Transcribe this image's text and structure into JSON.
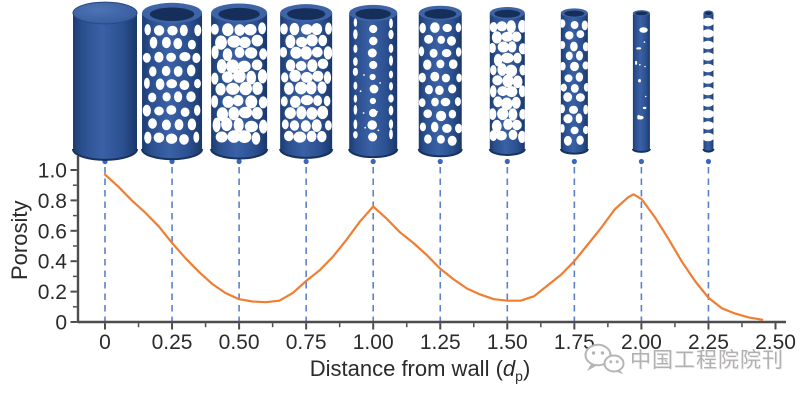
{
  "colors": {
    "curve": "#F07E32",
    "dashed_guide": "#5B82C9",
    "guide_dot": "#3B66BE",
    "axis": "#4D4D4D",
    "text": "#2B2B2B",
    "cylinder_dark": "#16335F",
    "cylinder_mid": "#2D5293",
    "cylinder_light": "#3E64A7",
    "watermark": "#B3B0B0",
    "background": "#FFFFFF"
  },
  "y_axis": {
    "label": "Porosity",
    "tick_labels": [
      "0",
      "0.2",
      "0.4",
      "0.6",
      "0.8",
      "1.0"
    ]
  },
  "x_axis": {
    "label_prefix": "Distance from wall (",
    "label_symbol": "d",
    "label_subscript": "p",
    "label_suffix": ")",
    "tick_labels": [
      "0",
      "0.25",
      "0.50",
      "0.75",
      "1.00",
      "1.25",
      "1.50",
      "1.75",
      "2.00",
      "2.25",
      "2.50"
    ]
  },
  "watermark": {
    "icon": "wechat-icon",
    "text": "中国工程院院刊"
  },
  "cylinders": [
    {
      "x": 0,
      "width": 64,
      "pattern": "solid"
    },
    {
      "x": 0.25,
      "width": 60,
      "pattern": "holes",
      "hole_r": 5.0,
      "row_gap": 13.5,
      "cols": 5
    },
    {
      "x": 0.5,
      "width": 56,
      "pattern": "net",
      "hole_r": 6.0,
      "row_gap": 12,
      "cols": 5
    },
    {
      "x": 0.75,
      "width": 52,
      "pattern": "net",
      "hole_r": 5.6,
      "row_gap": 12,
      "cols": 5
    },
    {
      "x": 1,
      "width": 48,
      "pattern": "spots"
    },
    {
      "x": 1.25,
      "width": 43,
      "pattern": "holes",
      "hole_r": 4.5,
      "row_gap": 12.5,
      "cols": 4
    },
    {
      "x": 1.5,
      "width": 35,
      "pattern": "net",
      "hole_r": 5.4,
      "row_gap": 11,
      "cols": 4
    },
    {
      "x": 1.75,
      "width": 27,
      "pattern": "net",
      "hole_r": 4.2,
      "row_gap": 10.5,
      "cols": 3
    },
    {
      "x": 2,
      "width": 17,
      "pattern": "few"
    },
    {
      "x": 2.25,
      "width": 10,
      "pattern": "crescents"
    }
  ],
  "chart_data": {
    "type": "line",
    "title": "",
    "xlabel": "Distance from wall (dp)",
    "ylabel": "Porosity",
    "xlim": [
      0,
      2.5
    ],
    "ylim": [
      0,
      1.0
    ],
    "x_ticks": [
      0,
      0.25,
      0.5,
      0.75,
      1,
      1.25,
      1.5,
      1.75,
      2,
      2.25,
      2.5
    ],
    "y_ticks": [
      0,
      0.2,
      0.4,
      0.6,
      0.8,
      1
    ],
    "x_minor_step": 0.125,
    "y_minor_step": 0.1,
    "grid": false,
    "legend": false,
    "guide_lines_x": [
      0,
      0.25,
      0.5,
      0.75,
      1,
      1.25,
      1.5,
      1.75,
      2,
      2.25
    ],
    "series": [
      {
        "name": "porosity",
        "color": "#F07E32",
        "x": [
          0,
          0.05,
          0.1,
          0.15,
          0.2,
          0.25,
          0.3,
          0.35,
          0.4,
          0.45,
          0.5,
          0.55,
          0.6,
          0.65,
          0.7,
          0.75,
          0.8,
          0.85,
          0.9,
          0.95,
          1,
          1.05,
          1.1,
          1.15,
          1.2,
          1.25,
          1.3,
          1.35,
          1.4,
          1.45,
          1.5,
          1.55,
          1.6,
          1.65,
          1.7,
          1.75,
          1.8,
          1.85,
          1.9,
          1.95,
          1.97,
          2,
          2.05,
          2.1,
          2.15,
          2.2,
          2.25,
          2.3,
          2.35,
          2.4,
          2.45
        ],
        "y": [
          0.97,
          0.89,
          0.8,
          0.72,
          0.63,
          0.52,
          0.42,
          0.33,
          0.25,
          0.19,
          0.15,
          0.135,
          0.13,
          0.14,
          0.19,
          0.27,
          0.34,
          0.43,
          0.54,
          0.66,
          0.76,
          0.68,
          0.59,
          0.52,
          0.44,
          0.35,
          0.28,
          0.22,
          0.18,
          0.15,
          0.14,
          0.14,
          0.17,
          0.24,
          0.31,
          0.4,
          0.51,
          0.62,
          0.74,
          0.82,
          0.84,
          0.81,
          0.69,
          0.55,
          0.4,
          0.27,
          0.16,
          0.09,
          0.055,
          0.03,
          0.015
        ]
      }
    ]
  }
}
